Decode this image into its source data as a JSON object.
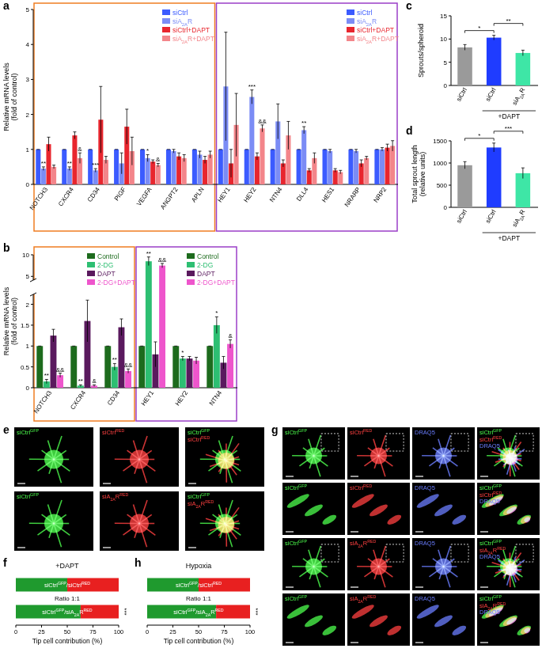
{
  "text_format": {
    "sup": [
      "GFP",
      "RED"
    ],
    "sub": [
      "2A"
    ]
  },
  "chart_data": [
    {
      "panel": "a",
      "type": "bar",
      "ylabel_lines": [
        "Relative mRNA levels",
        "(fold of control)"
      ],
      "categories": [
        "NOTCH3",
        "CXCR4",
        "CD34",
        "PIGF",
        "VEGFA",
        "ANGPT2",
        "APLN",
        "HEY1",
        "HEY2",
        "NTN4",
        "DLL4",
        "HES1",
        "NRARP",
        "NRP2"
      ],
      "category_groups": [
        {
          "start": 0,
          "end": 6,
          "color": "#f07d22"
        },
        {
          "start": 7,
          "end": 13,
          "color": "#9b3fc8"
        }
      ],
      "ylim": [
        0,
        5
      ],
      "yticks": [
        0,
        1,
        2,
        3,
        4,
        5
      ],
      "series": [
        {
          "name": "siCtrl",
          "color": "#3b5bff",
          "values": [
            1,
            1,
            1,
            1,
            1,
            1,
            1,
            1,
            1,
            1,
            1,
            1,
            1,
            1
          ],
          "errors": [
            0,
            0,
            0,
            0,
            0,
            0,
            0,
            0,
            0,
            0,
            0,
            0,
            0,
            0
          ]
        },
        {
          "name": "siA2AR",
          "color": "#7b8cf5",
          "values": [
            0.45,
            0.45,
            0.4,
            0.6,
            0.75,
            0.95,
            0.85,
            2.8,
            2.5,
            1.8,
            1.55,
            0.95,
            0.95,
            1.0
          ],
          "errors": [
            0.05,
            0.05,
            0.05,
            0.3,
            0.1,
            0.05,
            0.1,
            1.55,
            0.2,
            0.5,
            0.1,
            0.05,
            0.05,
            0.05
          ],
          "annotations": [
            "**",
            "**",
            "***",
            null,
            "*",
            null,
            null,
            null,
            "***",
            null,
            "**",
            null,
            null,
            null
          ]
        },
        {
          "name": "siCtrl+DAPT",
          "color": "#e8262e",
          "values": [
            1.15,
            1.4,
            1.85,
            1.65,
            0.65,
            0.8,
            0.7,
            0.6,
            0.8,
            0.6,
            0.4,
            0.4,
            0.6,
            1.05
          ],
          "errors": [
            0.2,
            0.1,
            0.95,
            0.5,
            0.05,
            0.1,
            0.1,
            0.4,
            0.1,
            0.1,
            0.05,
            0.05,
            0.1,
            0.1
          ]
        },
        {
          "name": "siA2AR+DAPT",
          "color": "#f3858a",
          "values": [
            0.5,
            0.75,
            0.7,
            0.95,
            0.55,
            0.75,
            0.85,
            1.7,
            1.6,
            1.4,
            0.75,
            0.35,
            0.75,
            1.1
          ],
          "errors": [
            0.05,
            0.15,
            0.1,
            0.4,
            0.05,
            0.1,
            0.1,
            0.9,
            0.1,
            0.4,
            0.15,
            0.05,
            0.05,
            0.15
          ],
          "annotations": [
            null,
            "&",
            null,
            null,
            "&",
            null,
            null,
            null,
            "&&",
            null,
            null,
            null,
            null,
            null
          ]
        }
      ]
    },
    {
      "panel": "b",
      "type": "bar",
      "ylabel_lines": [
        "Relative mRNA levels",
        "(fold of control)"
      ],
      "categories": [
        "NOTCH3",
        "CXCR4",
        "CD34",
        "HEY1",
        "HEY2",
        "NTN4"
      ],
      "category_groups": [
        {
          "start": 0,
          "end": 2,
          "color": "#f07d22"
        },
        {
          "start": 3,
          "end": 5,
          "color": "#9b3fc8"
        }
      ],
      "ylim": [
        0,
        10
      ],
      "yticks": [
        0,
        0.5,
        1,
        1.5,
        2,
        5,
        10
      ],
      "axis_break": [
        2.2,
        4.5
      ],
      "series": [
        {
          "name": "Control",
          "color": "#1d6b1d",
          "values": [
            1,
            1,
            1,
            1,
            1,
            1
          ],
          "errors": [
            0,
            0,
            0,
            0,
            0,
            0
          ]
        },
        {
          "name": "2-DG",
          "color": "#2dbf72",
          "values": [
            0.15,
            0.05,
            0.5,
            8.5,
            0.7,
            1.5
          ],
          "errors": [
            0.05,
            0.02,
            0.08,
            1,
            0.05,
            0.2
          ],
          "annotations": [
            "**",
            "**",
            "**",
            "**",
            "*",
            "*"
          ]
        },
        {
          "name": "DAPT",
          "color": "#5a1a5e",
          "values": [
            1.25,
            1.6,
            1.45,
            0.8,
            0.7,
            0.6
          ],
          "errors": [
            0.15,
            0.5,
            0.2,
            0.3,
            0.05,
            0.15
          ]
        },
        {
          "name": "2-DG+DAPT",
          "color": "#ee55cc",
          "values": [
            0.3,
            0.05,
            0.4,
            7.5,
            0.65,
            1.05
          ],
          "errors": [
            0.05,
            0.02,
            0.05,
            0.5,
            0.08,
            0.1
          ],
          "annotations": [
            "&&",
            "&",
            "&&",
            "&&",
            null,
            "&"
          ]
        }
      ]
    },
    {
      "panel": "c",
      "type": "bar",
      "ylabel_lines": [
        "Sprouts/spheroid"
      ],
      "categories": [
        "siCtrl",
        "siCtrl",
        "siA2AR"
      ],
      "ylim": [
        0,
        15
      ],
      "yticks": [
        0,
        5,
        10,
        15
      ],
      "series": [
        {
          "colors": [
            "#9a9a9a",
            "#1f3cff",
            "#3ee6a6"
          ],
          "values": [
            8.2,
            10.3,
            7.0
          ],
          "errors": [
            0.6,
            0.5,
            0.6
          ]
        }
      ],
      "comparisons": [
        {
          "from": 0,
          "to": 1,
          "label": "*"
        },
        {
          "from": 1,
          "to": 2,
          "label": "**"
        }
      ],
      "bracket": {
        "label": "+DAPT",
        "categories": [
          1,
          2
        ]
      }
    },
    {
      "panel": "d",
      "type": "bar",
      "ylabel_lines": [
        "Total sprout length",
        "(relative units)"
      ],
      "categories": [
        "siCtrl",
        "siCtrl",
        "siA2AR"
      ],
      "ylim": [
        0,
        1500
      ],
      "yticks": [
        0,
        500,
        1000,
        1500
      ],
      "series": [
        {
          "colors": [
            "#9a9a9a",
            "#1f3cff",
            "#3ee6a6"
          ],
          "values": [
            950,
            1350,
            770
          ],
          "errors": [
            80,
            100,
            120
          ]
        }
      ],
      "comparisons": [
        {
          "from": 0,
          "to": 1,
          "label": "*"
        },
        {
          "from": 1,
          "to": 2,
          "label": "***"
        }
      ],
      "bracket": {
        "label": "+DAPT",
        "categories": [
          1,
          2
        ]
      }
    },
    {
      "panel": "f",
      "type": "bar",
      "orientation": "horizontal",
      "stacked": true,
      "title": "+DAPT",
      "annotation": "Ratio 1:1",
      "xlabel": "Tip cell contribution (%)",
      "categories": [
        "siCtrlGFP/siCtrlRED",
        "siCtrlGFP/siA2ARRED"
      ],
      "xlim": [
        0,
        100
      ],
      "xticks": [
        0,
        25,
        50,
        75,
        100
      ],
      "annotations": [
        null,
        "***"
      ],
      "series": [
        {
          "color": "#1f9a2e",
          "values": [
            50,
            63
          ]
        },
        {
          "color": "#e82020",
          "values": [
            50,
            37
          ]
        }
      ]
    },
    {
      "panel": "h",
      "type": "bar",
      "orientation": "horizontal",
      "stacked": true,
      "title": "Hypoxia",
      "annotation": "Ratio 1:1",
      "xlabel": "Tip cell contribution (%)",
      "categories": [
        "siCtrlGFP/siCtrlRED",
        "siCtrlGFP/siA2ARRED"
      ],
      "xlim": [
        0,
        100
      ],
      "xticks": [
        0,
        25,
        50,
        75,
        100
      ],
      "annotations": [
        null,
        "***"
      ],
      "series": [
        {
          "color": "#1f9a2e",
          "values": [
            50,
            67
          ]
        },
        {
          "color": "#e82020",
          "values": [
            50,
            33
          ]
        }
      ]
    }
  ],
  "image_panels": [
    {
      "panel": "e",
      "rows": [
        [
          {
            "labels": [
              {
                "text": "siCtrlGFP",
                "color": "#4dff4d"
              }
            ]
          },
          {
            "labels": [
              {
                "text": "siCtrlRED",
                "color": "#ff4040"
              }
            ]
          },
          {
            "labels": [
              {
                "text": "siCtrlGFP",
                "color": "#4dff4d"
              },
              {
                "text": "siCtrlRED",
                "color": "#ff4040"
              }
            ]
          }
        ],
        [
          {
            "labels": [
              {
                "text": "siCtrlGFP",
                "color": "#4dff4d"
              }
            ]
          },
          {
            "labels": [
              {
                "text": "siA2ARRED",
                "color": "#ff4040"
              }
            ]
          },
          {
            "labels": [
              {
                "text": "siCtrlGFP",
                "color": "#4dff4d"
              },
              {
                "text": "siA2ARRED",
                "color": "#ff4040"
              }
            ]
          }
        ]
      ]
    },
    {
      "panel": "g",
      "rows": [
        [
          {
            "labels": [
              {
                "text": "siCtrlGFP",
                "color": "#4dff4d"
              }
            ]
          },
          {
            "labels": [
              {
                "text": "siCtrlRED",
                "color": "#ff4040"
              }
            ]
          },
          {
            "labels": [
              {
                "text": "DRAQ5",
                "color": "#6a7dff"
              }
            ]
          },
          {
            "labels": [
              {
                "text": "siCtrlGFP",
                "color": "#4dff4d"
              },
              {
                "text": "siCtrlRED",
                "color": "#ff4040"
              },
              {
                "text": "DRAQ5",
                "color": "#6a7dff"
              }
            ]
          }
        ],
        [
          {
            "magnified": true,
            "labels": [
              {
                "text": "siCtrlGFP",
                "color": "#4dff4d"
              }
            ]
          },
          {
            "magnified": true,
            "labels": [
              {
                "text": "siCtrlRED",
                "color": "#ff4040"
              }
            ]
          },
          {
            "magnified": true,
            "labels": [
              {
                "text": "DRAQ5",
                "color": "#6a7dff"
              }
            ]
          },
          {
            "magnified": true,
            "labels": [
              {
                "text": "siCtrlGFP",
                "color": "#4dff4d"
              },
              {
                "text": "siCtrlRED",
                "color": "#ff4040"
              },
              {
                "text": "DRAQ5",
                "color": "#6a7dff"
              }
            ]
          }
        ],
        [
          {
            "labels": [
              {
                "text": "siCtrlGFP",
                "color": "#4dff4d"
              }
            ]
          },
          {
            "labels": [
              {
                "text": "siA2ARRED",
                "color": "#ff4040"
              }
            ]
          },
          {
            "labels": [
              {
                "text": "DRAQ5",
                "color": "#6a7dff"
              }
            ]
          },
          {
            "labels": [
              {
                "text": "siCtrlGFP",
                "color": "#4dff4d"
              },
              {
                "text": "siA2ARRED",
                "color": "#ff4040"
              },
              {
                "text": "DRAQ5",
                "color": "#6a7dff"
              }
            ]
          }
        ],
        [
          {
            "magnified": true,
            "labels": [
              {
                "text": "siCtrlGFP",
                "color": "#4dff4d"
              }
            ]
          },
          {
            "magnified": true,
            "labels": [
              {
                "text": "siA2ARRED",
                "color": "#ff4040"
              }
            ]
          },
          {
            "magnified": true,
            "labels": [
              {
                "text": "DRAQ5",
                "color": "#6a7dff"
              }
            ]
          },
          {
            "magnified": true,
            "labels": [
              {
                "text": "siCtrlGFP",
                "color": "#4dff4d"
              },
              {
                "text": "siA2ARRED",
                "color": "#ff4040"
              },
              {
                "text": "DRAQ5",
                "color": "#6a7dff"
              }
            ]
          }
        ]
      ]
    }
  ]
}
